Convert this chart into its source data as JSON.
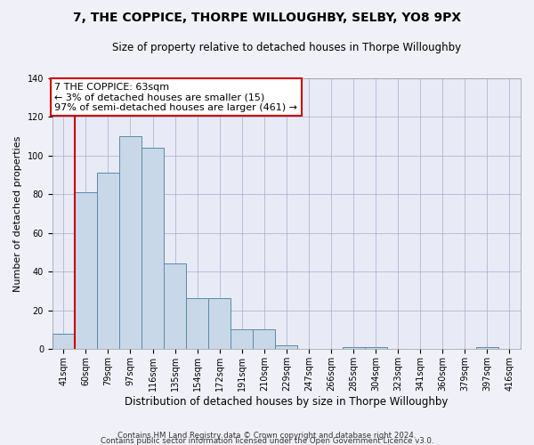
{
  "title": "7, THE COPPICE, THORPE WILLOUGHBY, SELBY, YO8 9PX",
  "subtitle": "Size of property relative to detached houses in Thorpe Willoughby",
  "xlabel": "Distribution of detached houses by size in Thorpe Willoughby",
  "ylabel": "Number of detached properties",
  "categories": [
    "41sqm",
    "60sqm",
    "79sqm",
    "97sqm",
    "116sqm",
    "135sqm",
    "154sqm",
    "172sqm",
    "191sqm",
    "210sqm",
    "229sqm",
    "247sqm",
    "266sqm",
    "285sqm",
    "304sqm",
    "323sqm",
    "341sqm",
    "360sqm",
    "379sqm",
    "397sqm",
    "416sqm"
  ],
  "values": [
    8,
    81,
    91,
    110,
    104,
    44,
    26,
    26,
    10,
    10,
    2,
    0,
    0,
    1,
    1,
    0,
    0,
    0,
    0,
    1,
    0
  ],
  "bar_color": "#c8d8e8",
  "bar_edge_color": "#5a8aa8",
  "red_line_x": 0.5,
  "annotation_text": "7 THE COPPICE: 63sqm\n← 3% of detached houses are smaller (15)\n97% of semi-detached houses are larger (461) →",
  "annotation_box_color": "#ffffff",
  "annotation_box_edge": "#cc0000",
  "ylim": [
    0,
    140
  ],
  "yticks": [
    0,
    20,
    40,
    60,
    80,
    100,
    120,
    140
  ],
  "grid_color": "#aaaacc",
  "background_color": "#e8eaf6",
  "fig_background": "#f0f0f8",
  "footer1": "Contains HM Land Registry data © Crown copyright and database right 2024.",
  "footer2": "Contains public sector information licensed under the Open Government Licence v3.0."
}
